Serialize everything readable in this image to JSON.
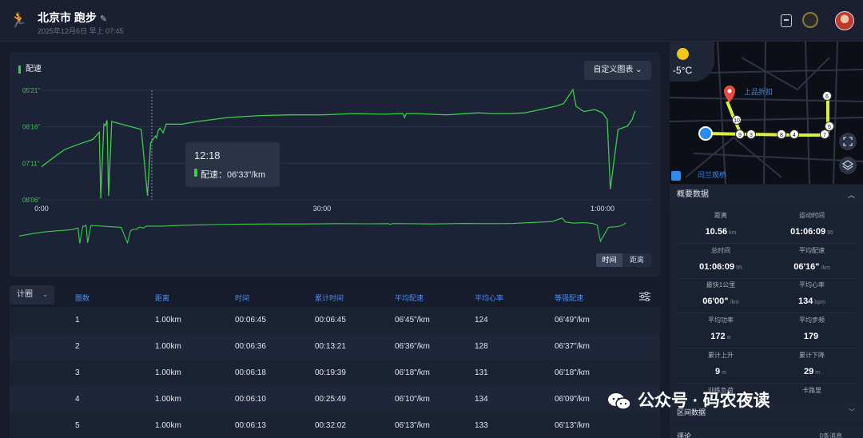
{
  "header": {
    "title": "北京市 跑步",
    "subtitle": "2025年12月6日 早上 07:45"
  },
  "chart": {
    "metric_label": "配速",
    "custom_button": "自定义图表 ⌄",
    "tooltip_time": "12:18",
    "tooltip_value": "配速：06'33\"/km",
    "toggle_time": "时间",
    "toggle_distance": "距离"
  },
  "chart_data": {
    "type": "line",
    "title": "配速",
    "y_ticks": [
      "05'21\"",
      "06'16\"",
      "07'11\"",
      "08'06\""
    ],
    "x_ticks": [
      "0:00",
      "30:00",
      "1:00:00"
    ],
    "x_range_seconds": [
      0,
      3969
    ],
    "y_range_seconds_per_km": [
      321,
      486
    ],
    "series": [
      {
        "color": "#3ccc4a",
        "points": [
          [
            0,
            436
          ],
          [
            90,
            420
          ],
          [
            150,
            410
          ],
          [
            240,
            402
          ],
          [
            330,
            395
          ],
          [
            370,
            384
          ],
          [
            380,
            484
          ],
          [
            400,
            372
          ],
          [
            410,
            374
          ],
          [
            420,
            366
          ],
          [
            430,
            480
          ],
          [
            450,
            368
          ],
          [
            640,
            380
          ],
          [
            680,
            480
          ],
          [
            700,
            400
          ],
          [
            730,
            390
          ],
          [
            738,
            393
          ],
          [
            750,
            381
          ],
          [
            760,
            378
          ],
          [
            780,
            385
          ],
          [
            800,
            372
          ],
          [
            900,
            372
          ],
          [
            1000,
            368
          ],
          [
            1200,
            362
          ],
          [
            1400,
            359
          ],
          [
            1600,
            358
          ],
          [
            1800,
            358
          ],
          [
            2000,
            356
          ],
          [
            2200,
            357
          ],
          [
            2320,
            356
          ],
          [
            2330,
            362
          ],
          [
            2340,
            356
          ],
          [
            2400,
            356
          ],
          [
            2600,
            358
          ],
          [
            2800,
            355
          ],
          [
            2900,
            356
          ],
          [
            3000,
            356
          ],
          [
            3100,
            355
          ],
          [
            3200,
            350
          ],
          [
            3300,
            345
          ],
          [
            3350,
            341
          ],
          [
            3410,
            320
          ],
          [
            3430,
            345
          ],
          [
            3480,
            353
          ],
          [
            3550,
            350
          ],
          [
            3600,
            355
          ],
          [
            3630,
            365
          ],
          [
            3650,
            470
          ],
          [
            3700,
            380
          ],
          [
            3760,
            375
          ],
          [
            3790,
            365
          ],
          [
            3800,
            358
          ],
          [
            3810,
            352
          ]
        ]
      }
    ]
  },
  "table": {
    "selector": "计圈",
    "headers": [
      "圈数",
      "距离",
      "时间",
      "累计时间",
      "平均配速",
      "平均心率",
      "等强配速"
    ],
    "rows": [
      [
        "1",
        "1.00km",
        "00:06:45",
        "00:06:45",
        "06'45\"/km",
        "124",
        "06'49\"/km"
      ],
      [
        "2",
        "1.00km",
        "00:06:36",
        "00:13:21",
        "06'36\"/km",
        "128",
        "06'37\"/km"
      ],
      [
        "3",
        "1.00km",
        "00:06:18",
        "00:19:39",
        "06'18\"/km",
        "131",
        "06'18\"/km"
      ],
      [
        "4",
        "1.00km",
        "00:06:10",
        "00:25:49",
        "06'10\"/km",
        "134",
        "06'09\"/km"
      ],
      [
        "5",
        "1.00km",
        "00:06:13",
        "00:32:02",
        "06'13\"/km",
        "133",
        "06'13\"/km"
      ]
    ]
  },
  "map": {
    "temperature": "-5°C",
    "label_poi": "上品折扣",
    "label_bridge": "闫兰观桥",
    "markers": [
      "10",
      "9",
      "3",
      "8",
      "4",
      "7",
      "5",
      "6"
    ]
  },
  "summary": {
    "title": "概要数据",
    "stats": [
      {
        "label": "距离",
        "value": "10.56",
        "unit": "km"
      },
      {
        "label": "运动时间",
        "value": "01:06:09",
        "unit": "95"
      },
      {
        "label": "总时间",
        "value": "01:06:09",
        "unit": "95"
      },
      {
        "label": "平均配速",
        "value": "06'16\"",
        "unit": "/km"
      },
      {
        "label": "最快1公里",
        "value": "06'00\"",
        "unit": "/km"
      },
      {
        "label": "平均心率",
        "value": "134",
        "unit": "bpm"
      },
      {
        "label": "平均功率",
        "value": "172",
        "unit": "w"
      },
      {
        "label": "平均步频",
        "value": "179",
        "unit": ""
      },
      {
        "label": "累计上升",
        "value": "9",
        "unit": "m"
      },
      {
        "label": "累计下降",
        "value": "29",
        "unit": "m"
      },
      {
        "label": "训练负荷",
        "value": "",
        "unit": ""
      },
      {
        "label": "卡路里",
        "value": "",
        "unit": ""
      }
    ],
    "section2": "区间数据",
    "section3": "评论",
    "section3_extra": "0条消息"
  },
  "watermark": {
    "text": "公众号 · 码农夜读"
  }
}
